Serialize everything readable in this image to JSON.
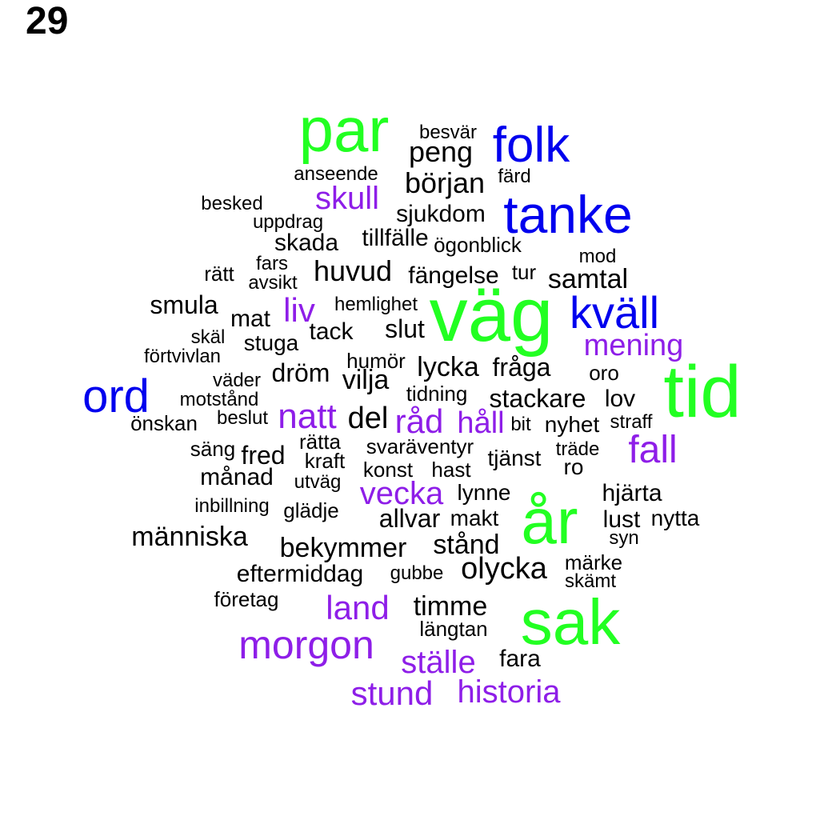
{
  "figure_label": "29",
  "palette": {
    "green": "#22ff22",
    "blue": "#0000ee",
    "purple": "#8e1ee8",
    "black": "#000000"
  },
  "words": [
    {
      "text": "par",
      "color": "green"
    },
    {
      "text": "besvär",
      "color": "black"
    },
    {
      "text": "folk",
      "color": "blue"
    },
    {
      "text": "peng",
      "color": "black"
    },
    {
      "text": "anseende",
      "color": "black"
    },
    {
      "text": "färd",
      "color": "black"
    },
    {
      "text": "början",
      "color": "black"
    },
    {
      "text": "skull",
      "color": "purple"
    },
    {
      "text": "besked",
      "color": "black"
    },
    {
      "text": "tanke",
      "color": "blue"
    },
    {
      "text": "sjukdom",
      "color": "black"
    },
    {
      "text": "uppdrag",
      "color": "black"
    },
    {
      "text": "tillfälle",
      "color": "black"
    },
    {
      "text": "skada",
      "color": "black"
    },
    {
      "text": "ögonblick",
      "color": "black"
    },
    {
      "text": "mod",
      "color": "black"
    },
    {
      "text": "fars",
      "color": "black"
    },
    {
      "text": "rätt",
      "color": "black"
    },
    {
      "text": "huvud",
      "color": "black"
    },
    {
      "text": "fängelse",
      "color": "black"
    },
    {
      "text": "tur",
      "color": "black"
    },
    {
      "text": "samtal",
      "color": "black"
    },
    {
      "text": "avsikt",
      "color": "black"
    },
    {
      "text": "smula",
      "color": "black"
    },
    {
      "text": "hemlighet",
      "color": "black"
    },
    {
      "text": "väg",
      "color": "green"
    },
    {
      "text": "kväll",
      "color": "blue"
    },
    {
      "text": "liv",
      "color": "purple"
    },
    {
      "text": "mat",
      "color": "black"
    },
    {
      "text": "tack",
      "color": "black"
    },
    {
      "text": "slut",
      "color": "black"
    },
    {
      "text": "skäl",
      "color": "black"
    },
    {
      "text": "stuga",
      "color": "black"
    },
    {
      "text": "mening",
      "color": "purple"
    },
    {
      "text": "förtvivlan",
      "color": "black"
    },
    {
      "text": "humör",
      "color": "black"
    },
    {
      "text": "lycka",
      "color": "black"
    },
    {
      "text": "fråga",
      "color": "black"
    },
    {
      "text": "tid",
      "color": "green"
    },
    {
      "text": "väder",
      "color": "black"
    },
    {
      "text": "dröm",
      "color": "black"
    },
    {
      "text": "vilja",
      "color": "black"
    },
    {
      "text": "oro",
      "color": "black"
    },
    {
      "text": "ord",
      "color": "blue"
    },
    {
      "text": "motstånd",
      "color": "black"
    },
    {
      "text": "tidning",
      "color": "black"
    },
    {
      "text": "stackare",
      "color": "black"
    },
    {
      "text": "lov",
      "color": "black"
    },
    {
      "text": "natt",
      "color": "purple"
    },
    {
      "text": "del",
      "color": "black"
    },
    {
      "text": "råd",
      "color": "purple"
    },
    {
      "text": "håll",
      "color": "purple"
    },
    {
      "text": "önskan",
      "color": "black"
    },
    {
      "text": "beslut",
      "color": "black"
    },
    {
      "text": "bit",
      "color": "black"
    },
    {
      "text": "nyhet",
      "color": "black"
    },
    {
      "text": "straff",
      "color": "black"
    },
    {
      "text": "rätta",
      "color": "black"
    },
    {
      "text": "säng",
      "color": "black"
    },
    {
      "text": "svaräventyr",
      "color": "black"
    },
    {
      "text": "träde",
      "color": "black"
    },
    {
      "text": "fall",
      "color": "purple"
    },
    {
      "text": "fred",
      "color": "black"
    },
    {
      "text": "kraft",
      "color": "black"
    },
    {
      "text": "tjänst",
      "color": "black"
    },
    {
      "text": "ro",
      "color": "black"
    },
    {
      "text": "konst",
      "color": "black"
    },
    {
      "text": "hast",
      "color": "black"
    },
    {
      "text": "månad",
      "color": "black"
    },
    {
      "text": "utväg",
      "color": "black"
    },
    {
      "text": "vecka",
      "color": "purple"
    },
    {
      "text": "lynne",
      "color": "black"
    },
    {
      "text": "hjärta",
      "color": "black"
    },
    {
      "text": "inbillning",
      "color": "black"
    },
    {
      "text": "glädje",
      "color": "black"
    },
    {
      "text": "år",
      "color": "green"
    },
    {
      "text": "allvar",
      "color": "black"
    },
    {
      "text": "makt",
      "color": "black"
    },
    {
      "text": "lust",
      "color": "black"
    },
    {
      "text": "nytta",
      "color": "black"
    },
    {
      "text": "människa",
      "color": "black"
    },
    {
      "text": "syn",
      "color": "black"
    },
    {
      "text": "stånd",
      "color": "black"
    },
    {
      "text": "bekymmer",
      "color": "black"
    },
    {
      "text": "märke",
      "color": "black"
    },
    {
      "text": "olycka",
      "color": "black"
    },
    {
      "text": "eftermiddag",
      "color": "black"
    },
    {
      "text": "gubbe",
      "color": "black"
    },
    {
      "text": "skämt",
      "color": "black"
    },
    {
      "text": "företag",
      "color": "black"
    },
    {
      "text": "land",
      "color": "purple"
    },
    {
      "text": "timme",
      "color": "black"
    },
    {
      "text": "sak",
      "color": "green"
    },
    {
      "text": "längtan",
      "color": "black"
    },
    {
      "text": "morgon",
      "color": "purple"
    },
    {
      "text": "ställe",
      "color": "purple"
    },
    {
      "text": "fara",
      "color": "black"
    },
    {
      "text": "stund",
      "color": "purple"
    },
    {
      "text": "historia",
      "color": "purple"
    }
  ]
}
